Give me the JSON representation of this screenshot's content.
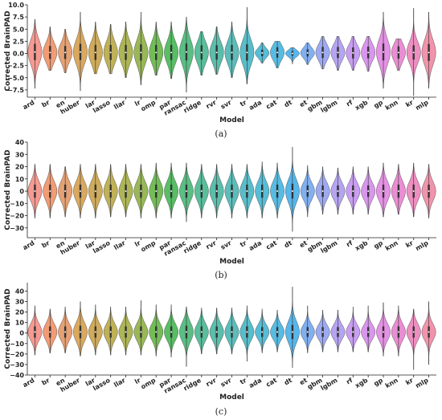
{
  "chart_data": [
    {
      "type": "violin",
      "panel_label": "(a)",
      "xlabel": "Model",
      "ylabel": "Corrected BrainPAD",
      "ylim": [
        -9,
        10
      ],
      "yticks": [
        -7.5,
        -5.0,
        -2.5,
        0.0,
        2.5,
        5.0,
        7.5,
        10.0
      ],
      "ytick_labels": [
        "−7.5",
        "−5.0",
        "−2.5",
        "0.0",
        "2.5",
        "5.0",
        "7.5",
        "10.0"
      ],
      "grid": false,
      "categories": [
        "ard",
        "br",
        "en",
        "huber",
        "lar",
        "lasso",
        "llar",
        "lr",
        "omp",
        "par",
        "ransac",
        "ridge",
        "rvr",
        "svr",
        "tr",
        "ada",
        "cat",
        "dt",
        "et",
        "gbm",
        "lgbm",
        "rf",
        "xgb",
        "gp",
        "knn",
        "kr",
        "mlp"
      ],
      "colors": [
        "#f4877d",
        "#f08a5c",
        "#e1915c",
        "#d59a42",
        "#c79c3d",
        "#b5a33a",
        "#9fa83a",
        "#86ac3a",
        "#5bb23a",
        "#3bb34a",
        "#3cb46e",
        "#3cb389",
        "#3db39c",
        "#3eb2ae",
        "#3ab2c1",
        "#38b2d0",
        "#3ab0de",
        "#3aa9e8",
        "#6aa2f0",
        "#8c9bf0",
        "#a894f0",
        "#bf8cf0",
        "#d484ec",
        "#e17ee0",
        "#e879cc",
        "#ec7ab6",
        "#f0809e"
      ],
      "medians": [
        0.3,
        0.2,
        0.2,
        0.3,
        0.2,
        0.2,
        0.2,
        0.2,
        0.2,
        0.2,
        0.3,
        0.2,
        0.2,
        0.2,
        0.2,
        0.1,
        0.2,
        0.0,
        0.1,
        0.2,
        0.2,
        0.1,
        0.2,
        0.3,
        0.2,
        0.2,
        0.2
      ],
      "spreads": [
        2.5,
        2.0,
        2.0,
        2.5,
        2.3,
        2.3,
        2.3,
        2.5,
        2.3,
        2.3,
        2.6,
        2.2,
        2.2,
        2.3,
        2.5,
        1.0,
        1.6,
        0.7,
        1.1,
        1.7,
        1.7,
        1.7,
        1.8,
        2.6,
        1.9,
        2.2,
        2.6
      ],
      "mins": [
        -7.2,
        -3.5,
        -4.0,
        -7.7,
        -4.2,
        -4.2,
        -5.0,
        -6.5,
        -4.5,
        -5.2,
        -8.0,
        -4.5,
        -4.3,
        -5.0,
        -6.3,
        -2.0,
        -3.0,
        -2.2,
        -2.3,
        -3.2,
        -3.5,
        -3.5,
        -3.7,
        -7.2,
        -3.5,
        -8.7,
        -7.2
      ],
      "maxs": [
        7.0,
        5.5,
        5.0,
        8.5,
        6.5,
        6.0,
        6.5,
        8.5,
        6.5,
        6.5,
        7.5,
        4.5,
        5.5,
        6.5,
        9.5,
        2.2,
        2.5,
        1.2,
        2.2,
        3.5,
        3.5,
        3.5,
        3.5,
        8.5,
        3.0,
        9.3,
        8.5
      ]
    },
    {
      "type": "violin",
      "panel_label": "(b)",
      "xlabel": "Model",
      "ylabel": "Corrected BrainPAD",
      "ylim": [
        -38,
        40
      ],
      "yticks": [
        -30,
        -20,
        -10,
        0,
        10,
        20,
        30,
        40
      ],
      "ytick_labels": [
        "−30",
        "−20",
        "−10",
        "0",
        "10",
        "20",
        "30",
        "40"
      ],
      "grid": false,
      "categories": [
        "ard",
        "br",
        "en",
        "huber",
        "lar",
        "lasso",
        "llar",
        "lr",
        "omp",
        "par",
        "ransac",
        "ridge",
        "rvr",
        "svr",
        "tr",
        "ada",
        "cat",
        "dt",
        "et",
        "gbm",
        "lgbm",
        "rf",
        "xgb",
        "gp",
        "knn",
        "kr",
        "mlp"
      ],
      "colors": [
        "#f4877d",
        "#f08a5c",
        "#e1915c",
        "#d59a42",
        "#c79c3d",
        "#b5a33a",
        "#9fa83a",
        "#86ac3a",
        "#5bb23a",
        "#3bb34a",
        "#3cb46e",
        "#3cb389",
        "#3db39c",
        "#3eb2ae",
        "#3ab2c1",
        "#38b2d0",
        "#3ab0de",
        "#3aa9e8",
        "#6aa2f0",
        "#8c9bf0",
        "#a894f0",
        "#bf8cf0",
        "#d484ec",
        "#e17ee0",
        "#e879cc",
        "#ec7ab6",
        "#f0809e"
      ],
      "medians": [
        0,
        0,
        0,
        0,
        0,
        0,
        0,
        0,
        0,
        0,
        0,
        0,
        0,
        0,
        0,
        0,
        0,
        0,
        0,
        0,
        0,
        0,
        0,
        0,
        0,
        0,
        0
      ],
      "spreads": [
        8,
        8,
        8,
        8,
        8,
        8,
        8,
        8,
        8,
        8,
        8,
        8,
        8,
        8,
        8,
        8,
        8,
        9,
        7,
        7,
        7,
        7,
        7,
        8,
        8,
        8,
        8
      ],
      "mins": [
        -22,
        -22,
        -21,
        -22,
        -22,
        -21,
        -21,
        -22,
        -22,
        -22,
        -25,
        -22,
        -22,
        -22,
        -22,
        -22,
        -22,
        -33,
        -21,
        -19,
        -19,
        -19,
        -19,
        -21,
        -19,
        -21,
        -22
      ],
      "maxs": [
        22,
        22,
        20,
        22,
        22,
        22,
        22,
        22,
        23,
        23,
        23,
        22,
        22,
        22,
        22,
        24,
        23,
        36,
        21,
        20,
        19,
        20,
        20,
        23,
        22,
        23,
        22
      ]
    },
    {
      "type": "violin",
      "panel_label": "(c)",
      "xlabel": "Model",
      "ylabel": "Corrected BrainPAD",
      "ylim": [
        -40,
        48
      ],
      "yticks": [
        -40,
        -30,
        -20,
        -10,
        0,
        10,
        20,
        30,
        40
      ],
      "ytick_labels": [
        "−40",
        "−30",
        "−20",
        "−10",
        "0",
        "10",
        "20",
        "30",
        "40"
      ],
      "grid": false,
      "categories": [
        "ard",
        "br",
        "en",
        "huber",
        "lar",
        "lasso",
        "llar",
        "lr",
        "omp",
        "par",
        "ransac",
        "ridge",
        "rvr",
        "svr",
        "tr",
        "ada",
        "cat",
        "dt",
        "et",
        "gbm",
        "lgbm",
        "rf",
        "xgb",
        "gp",
        "knn",
        "kr",
        "mlp"
      ],
      "colors": [
        "#f4877d",
        "#f08a5c",
        "#e1915c",
        "#d59a42",
        "#c79c3d",
        "#b5a33a",
        "#9fa83a",
        "#86ac3a",
        "#5bb23a",
        "#3bb34a",
        "#3cb46e",
        "#3cb389",
        "#3db39c",
        "#3eb2ae",
        "#3ab2c1",
        "#38b2d0",
        "#3ab0de",
        "#3aa9e8",
        "#6aa2f0",
        "#8c9bf0",
        "#a894f0",
        "#bf8cf0",
        "#d484ec",
        "#e17ee0",
        "#e879cc",
        "#ec7ab6",
        "#f0809e"
      ],
      "medians": [
        1,
        1,
        1,
        1,
        1,
        1,
        1,
        1,
        1,
        1,
        1,
        1,
        1,
        1,
        1,
        1,
        1,
        1,
        1,
        1,
        1,
        1,
        1,
        1,
        1,
        1,
        1
      ],
      "spreads": [
        8,
        8,
        8,
        9,
        8,
        8,
        8,
        8,
        8,
        8,
        9,
        8,
        8,
        8,
        8,
        7,
        7,
        10,
        7,
        7,
        7,
        7,
        7,
        8,
        8,
        8,
        8
      ],
      "mins": [
        -21,
        -19,
        -19,
        -22,
        -21,
        -21,
        -21,
        -21,
        -22,
        -23,
        -32,
        -20,
        -20,
        -20,
        -27,
        -19,
        -18,
        -33,
        -19,
        -18,
        -18,
        -18,
        -18,
        -22,
        -22,
        -35,
        -30
      ],
      "maxs": [
        26,
        23,
        25,
        30,
        27,
        25,
        25,
        31,
        27,
        27,
        25,
        24,
        24,
        24,
        26,
        23,
        22,
        44,
        26,
        22,
        22,
        25,
        26,
        29,
        26,
        23,
        30
      ]
    }
  ]
}
